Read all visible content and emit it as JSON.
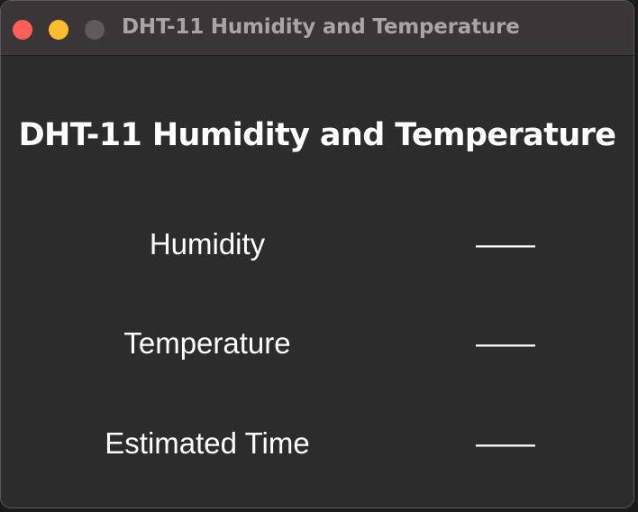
{
  "window": {
    "title": "DHT-11 Humidity and Temperature",
    "controls": {
      "close_color": "#fe5f57",
      "minimize_color": "#febc2e",
      "maximize_color": "#5f5b5b"
    }
  },
  "main": {
    "heading": "DHT-11 Humidity and Temperature",
    "readings": [
      {
        "label": "Humidity",
        "value": "——"
      },
      {
        "label": "Temperature",
        "value": "——"
      },
      {
        "label": "Estimated Time",
        "value": "——"
      }
    ]
  }
}
